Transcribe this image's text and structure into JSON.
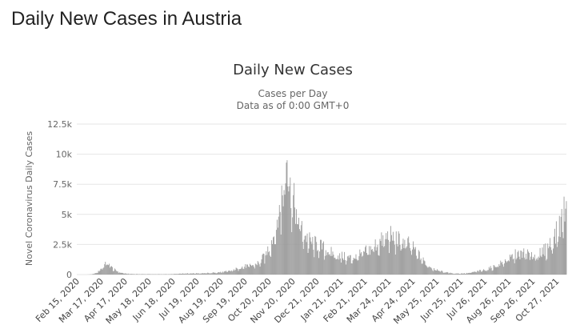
{
  "page": {
    "title": "Daily New Cases in Austria"
  },
  "chart_data": {
    "type": "bar",
    "title": "Daily New Cases",
    "subtitle": [
      "Cases per Day",
      "Data as of 0:00 GMT+0"
    ],
    "ylabel": "Novel Coronavirus Daily Cases",
    "xlabel": "",
    "x_start": "2020-02-15",
    "x_end": "2021-11-09",
    "ylim": [
      0,
      12500
    ],
    "yticks": [
      {
        "value": 0,
        "label": "0"
      },
      {
        "value": 2500,
        "label": "2.5k"
      },
      {
        "value": 5000,
        "label": "5k"
      },
      {
        "value": 7500,
        "label": "7.5k"
      },
      {
        "value": 10000,
        "label": "10k"
      },
      {
        "value": 12500,
        "label": "12.5k"
      }
    ],
    "xticks": [
      {
        "date": "2020-02-15",
        "label": "Feb 15, 2020"
      },
      {
        "date": "2020-03-17",
        "label": "Mar 17, 2020"
      },
      {
        "date": "2020-04-17",
        "label": "Apr 17, 2020"
      },
      {
        "date": "2020-05-18",
        "label": "May 18, 2020"
      },
      {
        "date": "2020-06-18",
        "label": "Jun 18, 2020"
      },
      {
        "date": "2020-07-19",
        "label": "Jul 19, 2020"
      },
      {
        "date": "2020-08-19",
        "label": "Aug 19, 2020"
      },
      {
        "date": "2020-09-19",
        "label": "Sep 19, 2020"
      },
      {
        "date": "2020-10-20",
        "label": "Oct 20, 2020"
      },
      {
        "date": "2020-11-20",
        "label": "Nov 20, 2020"
      },
      {
        "date": "2020-12-21",
        "label": "Dec 21, 2020"
      },
      {
        "date": "2021-01-21",
        "label": "Jan 21, 2021"
      },
      {
        "date": "2021-02-21",
        "label": "Feb 21, 2021"
      },
      {
        "date": "2021-03-24",
        "label": "Mar 24, 2021"
      },
      {
        "date": "2021-04-24",
        "label": "Apr 24, 2021"
      },
      {
        "date": "2021-05-25",
        "label": "May 25, 2021"
      },
      {
        "date": "2021-06-25",
        "label": "Jun 25, 2021"
      },
      {
        "date": "2021-07-26",
        "label": "Jul 26, 2021"
      },
      {
        "date": "2021-08-26",
        "label": "Aug 26, 2021"
      },
      {
        "date": "2021-09-26",
        "label": "Sep 26, 2021"
      },
      {
        "date": "2021-10-27",
        "label": "Oct 27, 2021"
      }
    ],
    "grid": true,
    "legend": "none",
    "bar_color": "#999999",
    "anchors": [
      [
        "2020-02-15",
        0
      ],
      [
        "2020-02-28",
        0
      ],
      [
        "2020-03-05",
        20
      ],
      [
        "2020-03-10",
        100
      ],
      [
        "2020-03-15",
        300
      ],
      [
        "2020-03-20",
        700
      ],
      [
        "2020-03-26",
        1000
      ],
      [
        "2020-03-31",
        600
      ],
      [
        "2020-04-05",
        350
      ],
      [
        "2020-04-12",
        150
      ],
      [
        "2020-04-20",
        70
      ],
      [
        "2020-05-01",
        40
      ],
      [
        "2020-06-01",
        30
      ],
      [
        "2020-06-15",
        30
      ],
      [
        "2020-07-01",
        100
      ],
      [
        "2020-07-15",
        100
      ],
      [
        "2020-08-01",
        120
      ],
      [
        "2020-08-15",
        170
      ],
      [
        "2020-09-01",
        300
      ],
      [
        "2020-09-15",
        650
      ],
      [
        "2020-10-01",
        800
      ],
      [
        "2020-10-10",
        1100
      ],
      [
        "2020-10-20",
        2200
      ],
      [
        "2020-10-28",
        3500
      ],
      [
        "2020-11-02",
        5000
      ],
      [
        "2020-11-08",
        6500
      ],
      [
        "2020-11-13",
        8800
      ],
      [
        "2020-11-17",
        7000
      ],
      [
        "2020-11-22",
        6000
      ],
      [
        "2020-11-26",
        5000
      ],
      [
        "2020-12-01",
        3800
      ],
      [
        "2020-12-07",
        3200
      ],
      [
        "2020-12-14",
        2700
      ],
      [
        "2020-12-22",
        2500
      ],
      [
        "2020-12-28",
        2300
      ],
      [
        "2021-01-05",
        2000
      ],
      [
        "2021-01-12",
        1700
      ],
      [
        "2021-01-20",
        1600
      ],
      [
        "2021-01-28",
        1450
      ],
      [
        "2021-02-05",
        1400
      ],
      [
        "2021-02-15",
        1650
      ],
      [
        "2021-02-25",
        2000
      ],
      [
        "2021-03-05",
        2400
      ],
      [
        "2021-03-15",
        2800
      ],
      [
        "2021-03-25",
        3300
      ],
      [
        "2021-04-01",
        3000
      ],
      [
        "2021-04-10",
        2800
      ],
      [
        "2021-04-20",
        2500
      ],
      [
        "2021-04-28",
        2000
      ],
      [
        "2021-05-05",
        1400
      ],
      [
        "2021-05-12",
        900
      ],
      [
        "2021-05-20",
        550
      ],
      [
        "2021-05-28",
        350
      ],
      [
        "2021-06-05",
        200
      ],
      [
        "2021-06-15",
        100
      ],
      [
        "2021-06-25",
        90
      ],
      [
        "2021-07-05",
        120
      ],
      [
        "2021-07-15",
        250
      ],
      [
        "2021-07-26",
        380
      ],
      [
        "2021-08-05",
        600
      ],
      [
        "2021-08-15",
        900
      ],
      [
        "2021-08-26",
        1300
      ],
      [
        "2021-09-05",
        1700
      ],
      [
        "2021-09-15",
        1800
      ],
      [
        "2021-09-26",
        1600
      ],
      [
        "2021-10-05",
        1700
      ],
      [
        "2021-10-15",
        2200
      ],
      [
        "2021-10-25",
        3200
      ],
      [
        "2021-11-01",
        4200
      ],
      [
        "2021-11-05",
        5200
      ],
      [
        "2021-11-09",
        6200
      ]
    ]
  }
}
